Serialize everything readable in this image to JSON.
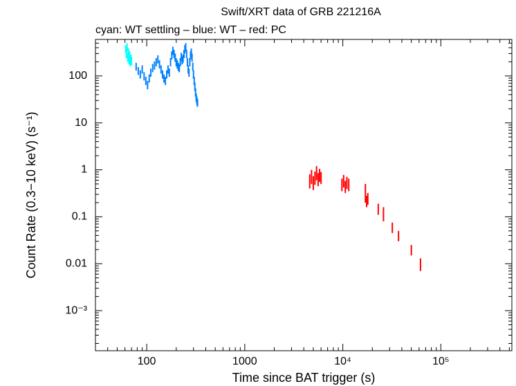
{
  "chart_data": {
    "type": "scatter",
    "title": "Swift/XRT data of GRB 221216A",
    "subtitle": "cyan: WT settling – blue: WT – red: PC",
    "x_label": "Time since BAT trigger (s)",
    "y_label": "Count Rate (0.3−10 keV) (s⁻¹)",
    "xscale": "log",
    "yscale": "log",
    "xlim": [
      30,
      530000
    ],
    "ylim": [
      0.00014,
      600
    ],
    "xticks": [
      100,
      1000,
      {
        "value": 10000,
        "label": "10⁴"
      },
      {
        "value": 100000,
        "label": "10⁵"
      }
    ],
    "yticks": [
      100,
      10,
      1,
      0.1,
      0.01,
      {
        "value": 0.001,
        "label": "10⁻³"
      }
    ],
    "series": [
      {
        "color": "#00ffff",
        "x": [
          61,
          62,
          63,
          64,
          65,
          66,
          67,
          68,
          69,
          70
        ],
        "values": [
          380,
          300,
          420,
          250,
          330,
          220,
          280,
          200,
          240,
          210
        ],
        "yerr": [
          70,
          60,
          80,
          50,
          60,
          45,
          55,
          40,
          45,
          40
        ]
      },
      {
        "color": "#0080ff",
        "x": [
          78,
          82,
          86,
          90,
          94,
          98,
          102,
          106,
          110,
          115,
          120,
          125,
          130,
          135,
          140,
          145,
          150,
          155,
          160,
          165,
          170,
          175,
          180,
          185,
          190,
          195,
          200,
          205,
          210,
          215,
          220,
          225,
          230,
          235,
          240,
          245,
          250,
          255,
          260,
          265,
          270,
          275,
          280,
          285,
          290,
          295,
          300,
          305,
          310,
          315,
          320,
          325,
          330
        ],
        "values": [
          160,
          130,
          110,
          140,
          100,
          80,
          65,
          90,
          120,
          150,
          170,
          200,
          230,
          180,
          140,
          110,
          90,
          80,
          110,
          140,
          120,
          200,
          280,
          350,
          300,
          250,
          200,
          180,
          160,
          150,
          200,
          260,
          220,
          240,
          300,
          380,
          420,
          300,
          200,
          140,
          120,
          200,
          280,
          320,
          250,
          160,
          110,
          80,
          60,
          45,
          35,
          30,
          27
        ],
        "yerr": [
          30,
          25,
          22,
          28,
          20,
          16,
          13,
          18,
          24,
          30,
          34,
          40,
          45,
          36,
          28,
          22,
          18,
          16,
          22,
          28,
          24,
          40,
          55,
          70,
          60,
          50,
          40,
          36,
          32,
          30,
          40,
          52,
          44,
          48,
          60,
          75,
          80,
          60,
          40,
          28,
          24,
          40,
          55,
          64,
          50,
          32,
          22,
          16,
          12,
          9,
          7,
          6,
          5
        ]
      },
      {
        "color": "#ff0000",
        "x": [
          4600,
          4800,
          5000,
          5200,
          5400,
          5600,
          5800,
          6000,
          9800,
          10200,
          10600,
          11000,
          11500,
          17000,
          17500,
          18000,
          23000,
          26000,
          32000,
          37000,
          50000,
          62000
        ],
        "values": [
          0.6,
          0.75,
          0.55,
          0.7,
          0.9,
          0.65,
          0.8,
          0.7,
          0.5,
          0.6,
          0.45,
          0.55,
          0.5,
          0.35,
          0.22,
          0.25,
          0.15,
          0.12,
          0.06,
          0.04,
          0.02,
          0.01
        ],
        "yerr": [
          0.2,
          0.25,
          0.18,
          0.22,
          0.3,
          0.2,
          0.25,
          0.2,
          0.15,
          0.18,
          0.13,
          0.16,
          0.15,
          0.15,
          0.06,
          0.07,
          0.04,
          0.04,
          0.015,
          0.01,
          0.005,
          0.003
        ]
      }
    ]
  }
}
